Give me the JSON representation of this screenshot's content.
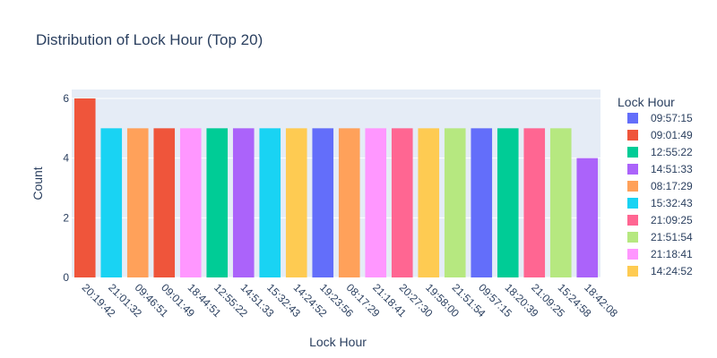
{
  "chart_data": {
    "type": "bar",
    "title": "Distribution of Lock Hour (Top 20)",
    "xlabel": "Lock Hour",
    "ylabel": "Count",
    "ylim": [
      0,
      6.3
    ],
    "yticks": [
      0,
      2,
      4,
      6
    ],
    "grid": true,
    "legend_title": "Lock Hour",
    "legend_placement": "right",
    "categories": [
      "20:19:42",
      "21:01:32",
      "09:46:51",
      "09:01:49",
      "18:44:51",
      "12:55:22",
      "14:51:33",
      "15:32:43",
      "14:24:52",
      "19:23:56",
      "08:17:29",
      "21:18:41",
      "20:27:30",
      "19:58:00",
      "21:51:54",
      "09:57:15",
      "18:20:39",
      "21:09:25",
      "15:24:58",
      "18:42:08"
    ],
    "values": [
      6,
      5,
      5,
      5,
      5,
      5,
      5,
      5,
      5,
      5,
      5,
      5,
      5,
      5,
      5,
      5,
      5,
      5,
      5,
      4
    ],
    "colors": [
      "#ef553b",
      "#19d3f3",
      "#ffa15a",
      "#ef553b",
      "#ff97ff",
      "#00cc96",
      "#ab63fa",
      "#19d3f3",
      "#fecb52",
      "#636efa",
      "#ffa15a",
      "#ff97ff",
      "#ff6692",
      "#fecb52",
      "#b6e880",
      "#636efa",
      "#00cc96",
      "#ff6692",
      "#b6e880",
      "#ab63fa"
    ],
    "legend": [
      {
        "label": "09:57:15",
        "color": "#636efa"
      },
      {
        "label": "09:01:49",
        "color": "#ef553b"
      },
      {
        "label": "12:55:22",
        "color": "#00cc96"
      },
      {
        "label": "14:51:33",
        "color": "#ab63fa"
      },
      {
        "label": "08:17:29",
        "color": "#ffa15a"
      },
      {
        "label": "15:32:43",
        "color": "#19d3f3"
      },
      {
        "label": "21:09:25",
        "color": "#ff6692"
      },
      {
        "label": "21:51:54",
        "color": "#b6e880"
      },
      {
        "label": "21:18:41",
        "color": "#ff97ff"
      },
      {
        "label": "14:24:52",
        "color": "#fecb52"
      }
    ],
    "plot_background": "#e5ecf6",
    "grid_color": "#ffffff"
  }
}
